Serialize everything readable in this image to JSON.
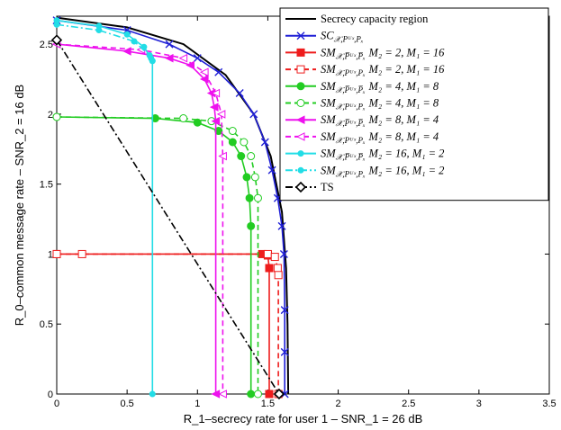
{
  "chart_data": {
    "type": "line",
    "xlabel": "R_1–secrecy rate for user 1 – SNR_1 = 26 dB",
    "ylabel": "R_0–common message rate – SNR_2 = 16 dB",
    "xlim": [
      0,
      3.5
    ],
    "ylim": [
      0,
      2.7
    ],
    "xticks": [
      "0",
      "0.5",
      "1",
      "1.5",
      "2",
      "2.5",
      "3",
      "3.5"
    ],
    "yticks": [
      "0",
      "0.5",
      "1",
      "1.5",
      "2",
      "2.5"
    ],
    "grid": false,
    "legend_position": "top-right",
    "series": [
      {
        "name": "Secrecy capacity region",
        "color": "#000000",
        "dash": "solid",
        "marker": "none",
        "x": [
          0,
          0.5,
          0.9,
          1.2,
          1.4,
          1.52,
          1.6,
          1.63,
          1.64,
          1.645
        ],
        "y": [
          2.69,
          2.62,
          2.5,
          2.28,
          2.0,
          1.7,
          1.3,
          0.9,
          0.5,
          0
        ]
      },
      {
        "name": "SC_{X,P_UX,P_X}",
        "color": "#1f1fd6",
        "dash": "solid",
        "marker": "x",
        "x": [
          0,
          0.5,
          0.8,
          1.0,
          1.15,
          1.3,
          1.4,
          1.48,
          1.53,
          1.57,
          1.6,
          1.615,
          1.62,
          1.62,
          1.62
        ],
        "y": [
          2.67,
          2.6,
          2.5,
          2.4,
          2.3,
          2.15,
          2.0,
          1.8,
          1.6,
          1.4,
          1.2,
          1.0,
          0.6,
          0.3,
          0
        ]
      },
      {
        "name": "SM_{X,P_UX,P_X} M_2 = 2, M_1 = 16",
        "color": "#ee1c1c",
        "dash": "solid",
        "marker": "square",
        "x": [
          0,
          1.46,
          1.5,
          1.51,
          1.51
        ],
        "y": [
          1.0,
          1.0,
          0.99,
          0.9,
          0
        ]
      },
      {
        "name": "SM_{X,P_UX,P_X} M_2 = 2, M_1 = 16 (dashed)",
        "color": "#ee1c1c",
        "dash": "dashed",
        "marker": "square-open",
        "x": [
          0,
          0.18,
          1.5,
          1.55,
          1.57,
          1.575,
          1.575
        ],
        "y": [
          1.0,
          1.0,
          1.0,
          0.98,
          0.9,
          0.85,
          0
        ]
      },
      {
        "name": "SM_{X,P_UX,P_X} M_2 = 4, M_1 = 8",
        "color": "#22cc22",
        "dash": "solid",
        "marker": "circle",
        "x": [
          0,
          0.7,
          1.0,
          1.15,
          1.25,
          1.31,
          1.35,
          1.37,
          1.38,
          1.38
        ],
        "y": [
          1.98,
          1.97,
          1.94,
          1.88,
          1.8,
          1.7,
          1.55,
          1.4,
          1.2,
          0
        ]
      },
      {
        "name": "SM_{X,P_UX,P_X} M_2 = 4, M_1 = 8 (dashed)",
        "color": "#22cc22",
        "dash": "dashed",
        "marker": "circle-open",
        "x": [
          0,
          0.9,
          1.1,
          1.25,
          1.33,
          1.38,
          1.41,
          1.43,
          1.43
        ],
        "y": [
          1.98,
          1.97,
          1.95,
          1.88,
          1.8,
          1.7,
          1.55,
          1.4,
          0
        ]
      },
      {
        "name": "SM_{X,P_UX,P_X} M_2 = 8, M_1 = 4",
        "color": "#ee11ee",
        "dash": "solid",
        "marker": "triangle-left",
        "x": [
          0,
          0.5,
          0.8,
          0.95,
          1.05,
          1.1,
          1.12,
          1.13,
          1.13
        ],
        "y": [
          2.5,
          2.45,
          2.4,
          2.35,
          2.25,
          2.15,
          2.05,
          1.95,
          0
        ]
      },
      {
        "name": "SM_{X,P_UX,P_X} M_2 = 8, M_1 = 4 (dashed)",
        "color": "#ee11ee",
        "dash": "dashed",
        "marker": "triangle-left-open",
        "x": [
          0,
          0.6,
          0.9,
          1.05,
          1.13,
          1.17,
          1.18,
          1.18
        ],
        "y": [
          2.5,
          2.46,
          2.4,
          2.3,
          2.15,
          2.0,
          1.7,
          0
        ]
      },
      {
        "name": "SM_{X,P_UX,P_X} M_2 = 16, M_1 = 2",
        "color": "#22dde6",
        "dash": "solid",
        "marker": "dot",
        "x": [
          0,
          0.3,
          0.5,
          0.62,
          0.67,
          0.68,
          0.68
        ],
        "y": [
          2.67,
          2.63,
          2.57,
          2.48,
          2.4,
          2.38,
          0
        ]
      },
      {
        "name": "SM_{X,P_UX,P_X} M_2 = 16, M_1 = 2 (dashed)",
        "color": "#22dde6",
        "dash": "dashdot",
        "marker": "dot",
        "x": [
          0,
          0.3,
          0.55,
          0.66,
          0.68
        ],
        "y": [
          2.64,
          2.6,
          2.52,
          2.42,
          2.38
        ]
      },
      {
        "name": "TS",
        "color": "#000000",
        "dash": "dashdot",
        "marker": "diamond-open",
        "x": [
          0,
          1.58
        ],
        "y": [
          2.53,
          0
        ]
      }
    ]
  },
  "legend": {
    "entries": [
      {
        "text": "Secrecy capacity region",
        "sub": "",
        "tail": "",
        "color": "#000000",
        "dash": "solid",
        "marker": "none"
      },
      {
        "text": "SC",
        "sub": "𝒳,Pᵁˣ,Pₓ",
        "tail": "",
        "color": "#1f1fd6",
        "dash": "solid",
        "marker": "x"
      },
      {
        "text": "SM",
        "sub": "𝒳,P̅ᵁˣ,P̅ₓ",
        "tail": "M₂ = 2, M₁ = 16",
        "color": "#ee1c1c",
        "dash": "solid",
        "marker": "square"
      },
      {
        "text": "SM",
        "sub": "𝒳,Pᵁˣ,Pₓ",
        "tail": "M₂ = 2, M₁ = 16",
        "color": "#ee1c1c",
        "dash": "dashed",
        "marker": "square-open"
      },
      {
        "text": "SM",
        "sub": "𝒳,P̅ᵁˣ,P̅ₓ",
        "tail": "M₂ = 4, M₁ = 8",
        "color": "#22cc22",
        "dash": "solid",
        "marker": "circle"
      },
      {
        "text": "SM",
        "sub": "𝒳,Pᵁˣ,Pₓ",
        "tail": "M₂ = 4, M₁ = 8",
        "color": "#22cc22",
        "dash": "dashed",
        "marker": "circle-open"
      },
      {
        "text": "SM",
        "sub": "𝒳,P̅ᵁˣ,P̅ₓ",
        "tail": "M₂ = 8, M₁ = 4",
        "color": "#ee11ee",
        "dash": "solid",
        "marker": "triangle-left"
      },
      {
        "text": "SM",
        "sub": "𝒳,Pᵁˣ,Pₓ",
        "tail": "M₂ = 8, M₁ = 4",
        "color": "#ee11ee",
        "dash": "dashed",
        "marker": "triangle-left-open"
      },
      {
        "text": "SM",
        "sub": "𝒳,P̅ᵁˣ,P̅ₓ",
        "tail": "M₂ = 16, M₁ = 2",
        "color": "#22dde6",
        "dash": "solid",
        "marker": "dot"
      },
      {
        "text": "SM",
        "sub": "𝒳,Pᵁˣ,Pₓ",
        "tail": "M₂ = 16, M₁ = 2",
        "color": "#22dde6",
        "dash": "dashdot",
        "marker": "dot"
      },
      {
        "text": "TS",
        "sub": "",
        "tail": "",
        "color": "#000000",
        "dash": "dashdot",
        "marker": "diamond-open"
      }
    ]
  }
}
